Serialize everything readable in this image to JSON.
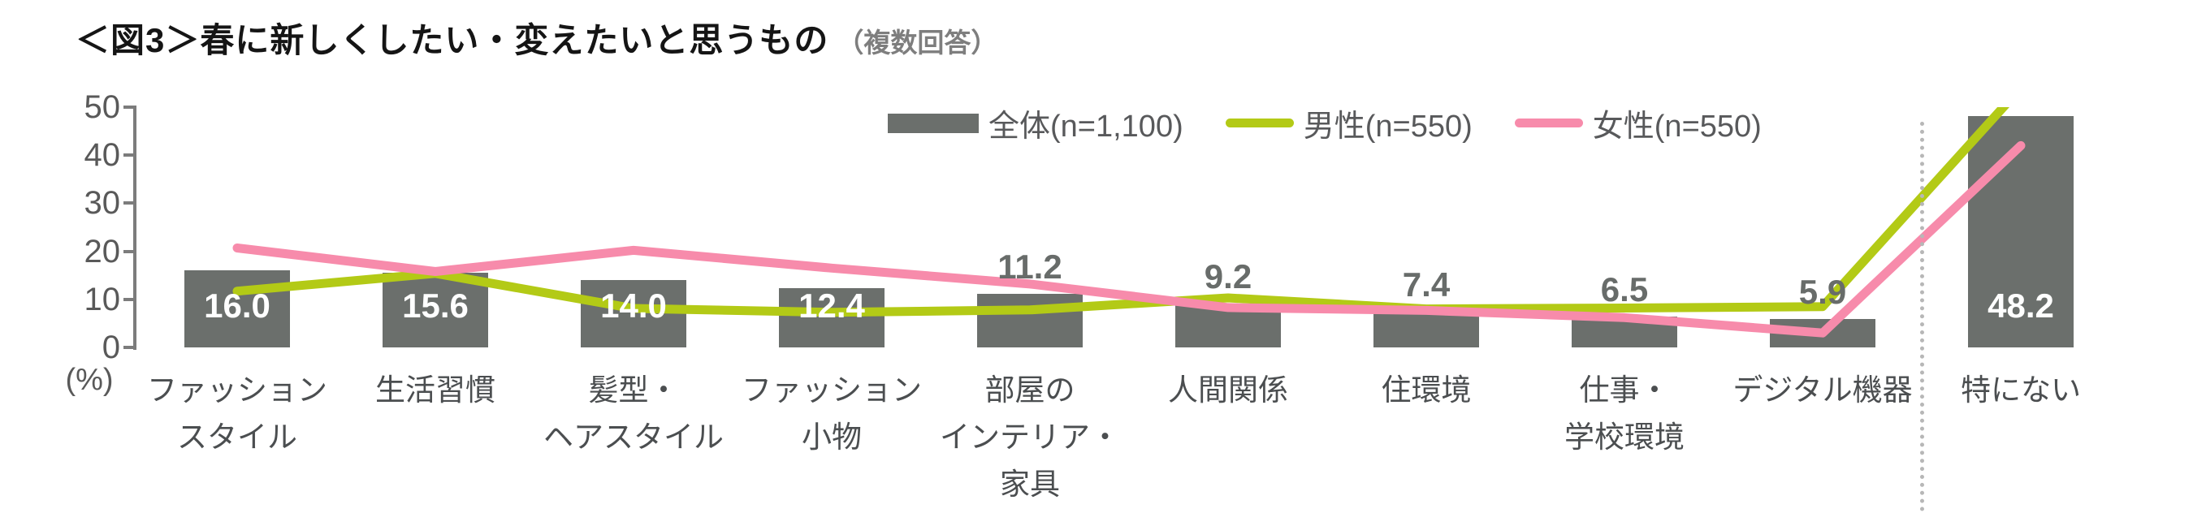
{
  "header": {
    "title": "＜図3＞春に新しくしたい・変えたいと思うもの",
    "subtitle": "（複数回答）"
  },
  "y_axis": {
    "unit_label": "(%)",
    "ticks": [
      0,
      10,
      20,
      30,
      40,
      50
    ],
    "max": 50
  },
  "colors": {
    "bar_gray": "#6b6f6c",
    "male_line": "#b3ca16",
    "female_line": "#f78bab",
    "axis": "#7c7c7c",
    "value_label_gray": "#686c6a",
    "value_label_white": "#ffffff"
  },
  "chart_data": {
    "type": "bar",
    "title": "＜図3＞春に新しくしたい・変えたいと思うもの（複数回答）",
    "ylabel": "(%)",
    "ylim": [
      0,
      50
    ],
    "grid": false,
    "legend_position": "top-center",
    "categories": [
      "ファッション\nスタイル",
      "生活習慣",
      "髪型・\nヘアスタイル",
      "ファッション\n小物",
      "部屋の\nインテリア・\n家具",
      "人間関係",
      "住環境",
      "仕事・\n学校環境",
      "デジタル機器",
      "特にない"
    ],
    "series": [
      {
        "name": "全体(n=1,100)",
        "type": "bar",
        "color": "#6b6f6c",
        "values": [
          16.0,
          15.6,
          14.0,
          12.4,
          11.2,
          9.2,
          7.4,
          6.5,
          5.9,
          48.2
        ],
        "labels_shown": true
      },
      {
        "name": "男性(n=550)",
        "type": "line",
        "color": "#b3ca16",
        "values": [
          11.7,
          15.4,
          8.1,
          7.3,
          7.8,
          10.3,
          8.0,
          8.2,
          8.5,
          54.0
        ],
        "labels_shown": false,
        "note": "values estimated from pixels; last point exceeds axis max and line is clipped at 50"
      },
      {
        "name": "女性(n=550)",
        "type": "line",
        "color": "#f78bab",
        "values": [
          20.7,
          15.8,
          20.2,
          16.5,
          13.2,
          8.3,
          7.7,
          6.2,
          3.0,
          42.0
        ],
        "labels_shown": false,
        "note": "values estimated from pixels"
      }
    ],
    "separator_after_category": "デジタル機器",
    "bar_value_labels": [
      "16.0",
      "15.6",
      "14.0",
      "12.4",
      "11.2",
      "9.2",
      "7.4",
      "6.5",
      "5.9",
      "48.2"
    ]
  }
}
